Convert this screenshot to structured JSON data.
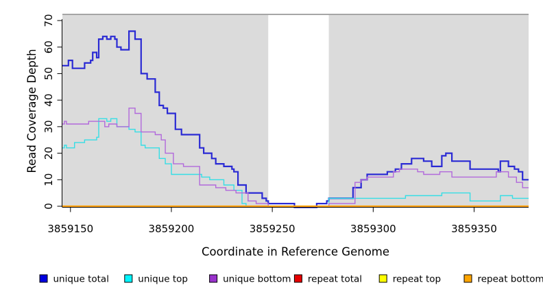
{
  "chart_data": {
    "type": "line",
    "step": true,
    "title": "",
    "xlabel": "Coordinate in Reference Genome",
    "ylabel": "Read Coverage Depth",
    "xlim": [
      3859146,
      3859377
    ],
    "ylim": [
      0,
      70
    ],
    "grid": false,
    "plot_background": "#DBDBDB",
    "top_border_color": "#9B9B9B",
    "masked_region": {
      "x_start": 3859248,
      "x_end": 3859278,
      "fill": "#FFFFFF"
    },
    "x_ticks": {
      "values": [
        3859150,
        3859200,
        3859250,
        3859300,
        3859350
      ],
      "labels": [
        "3859150",
        "3859200",
        "3859250",
        "3859300",
        "3859350"
      ]
    },
    "y_ticks": {
      "values": [
        0,
        10,
        20,
        30,
        40,
        50,
        60,
        70
      ],
      "labels": [
        "0",
        "10",
        "20",
        "30",
        "40",
        "50",
        "60",
        "70"
      ]
    },
    "series": [
      {
        "name": "unique total",
        "color": "#2A2AD4",
        "line_width": 2.2,
        "points": [
          [
            3859146,
            53
          ],
          [
            3859149,
            55
          ],
          [
            3859151,
            52
          ],
          [
            3859157,
            54
          ],
          [
            3859160,
            55
          ],
          [
            3859161,
            58
          ],
          [
            3859163,
            56
          ],
          [
            3859164,
            63
          ],
          [
            3859166,
            64
          ],
          [
            3859168,
            63
          ],
          [
            3859170,
            64
          ],
          [
            3859172,
            63
          ],
          [
            3859173,
            60
          ],
          [
            3859175,
            59
          ],
          [
            3859179,
            66
          ],
          [
            3859182,
            63
          ],
          [
            3859185,
            50
          ],
          [
            3859188,
            48
          ],
          [
            3859192,
            43
          ],
          [
            3859194,
            38
          ],
          [
            3859196,
            37
          ],
          [
            3859198,
            35
          ],
          [
            3859202,
            29
          ],
          [
            3859205,
            27
          ],
          [
            3859214,
            22
          ],
          [
            3859216,
            20
          ],
          [
            3859220,
            18
          ],
          [
            3859222,
            16
          ],
          [
            3859226,
            15
          ],
          [
            3859230,
            14
          ],
          [
            3859231,
            13
          ],
          [
            3859233,
            8
          ],
          [
            3859237,
            5
          ],
          [
            3859245,
            3
          ],
          [
            3859247,
            2
          ],
          [
            3859248,
            1
          ],
          [
            3859261,
            0
          ],
          [
            3859272,
            1
          ],
          [
            3859277,
            2
          ],
          [
            3859278,
            3
          ],
          [
            3859290,
            7
          ],
          [
            3859294,
            10
          ],
          [
            3859297,
            12
          ],
          [
            3859307,
            13
          ],
          [
            3859311,
            14
          ],
          [
            3859314,
            16
          ],
          [
            3859319,
            18
          ],
          [
            3859325,
            17
          ],
          [
            3859329,
            15
          ],
          [
            3859334,
            19
          ],
          [
            3859336,
            20
          ],
          [
            3859339,
            17
          ],
          [
            3859348,
            14
          ],
          [
            3859362,
            13
          ],
          [
            3859363,
            17
          ],
          [
            3859367,
            15
          ],
          [
            3859370,
            14
          ],
          [
            3859372,
            13
          ],
          [
            3859374,
            10
          ]
        ]
      },
      {
        "name": "unique top",
        "color": "#35DEE5",
        "line_width": 1.4,
        "points": [
          [
            3859146,
            22
          ],
          [
            3859147,
            23
          ],
          [
            3859148,
            22
          ],
          [
            3859152,
            24
          ],
          [
            3859157,
            25
          ],
          [
            3859163,
            26
          ],
          [
            3859164,
            33
          ],
          [
            3859168,
            32
          ],
          [
            3859170,
            33
          ],
          [
            3859173,
            30
          ],
          [
            3859179,
            29
          ],
          [
            3859182,
            28
          ],
          [
            3859185,
            23
          ],
          [
            3859187,
            22
          ],
          [
            3859194,
            18
          ],
          [
            3859197,
            16
          ],
          [
            3859200,
            12
          ],
          [
            3859215,
            11
          ],
          [
            3859219,
            10
          ],
          [
            3859226,
            8
          ],
          [
            3859231,
            6
          ],
          [
            3859235,
            1
          ],
          [
            3859237,
            0
          ],
          [
            3859278,
            3
          ],
          [
            3859316,
            4
          ],
          [
            3859334,
            5
          ],
          [
            3859348,
            2
          ],
          [
            3859363,
            4
          ],
          [
            3859369,
            3
          ]
        ]
      },
      {
        "name": "unique bottom",
        "color": "#B168DB",
        "line_width": 1.4,
        "points": [
          [
            3859146,
            31
          ],
          [
            3859147,
            32
          ],
          [
            3859148,
            31
          ],
          [
            3859159,
            32
          ],
          [
            3859167,
            30
          ],
          [
            3859169,
            31
          ],
          [
            3859173,
            30
          ],
          [
            3859179,
            37
          ],
          [
            3859182,
            35
          ],
          [
            3859185,
            28
          ],
          [
            3859192,
            27
          ],
          [
            3859195,
            25
          ],
          [
            3859197,
            20
          ],
          [
            3859201,
            16
          ],
          [
            3859206,
            15
          ],
          [
            3859214,
            8
          ],
          [
            3859222,
            7
          ],
          [
            3859227,
            6
          ],
          [
            3859232,
            5
          ],
          [
            3859238,
            2
          ],
          [
            3859242,
            1
          ],
          [
            3859248,
            0
          ],
          [
            3859278,
            1
          ],
          [
            3859291,
            9
          ],
          [
            3859294,
            10
          ],
          [
            3859297,
            11
          ],
          [
            3859310,
            13
          ],
          [
            3859313,
            14
          ],
          [
            3859322,
            13
          ],
          [
            3859325,
            12
          ],
          [
            3859333,
            13
          ],
          [
            3859339,
            11
          ],
          [
            3859361,
            13
          ],
          [
            3859367,
            11
          ],
          [
            3859371,
            9
          ],
          [
            3859374,
            7
          ]
        ]
      },
      {
        "name": "repeat total",
        "color": "#DD0000",
        "line_width": 1.4,
        "points": [
          [
            3859146,
            0
          ]
        ]
      },
      {
        "name": "repeat top",
        "color": "#FFFF00",
        "line_width": 1.4,
        "points": [
          [
            3859146,
            0
          ]
        ]
      },
      {
        "name": "repeat bottom",
        "color": "#FFA200",
        "line_width": 2.2,
        "points": [
          [
            3859146,
            0
          ]
        ]
      }
    ],
    "legend": {
      "position": "bottom",
      "entries": [
        {
          "label": "unique total",
          "fill": "#0000E0"
        },
        {
          "label": "unique top",
          "fill": "#00F5FF"
        },
        {
          "label": "unique bottom",
          "fill": "#9932CC"
        },
        {
          "label": "repeat total",
          "fill": "#E60000"
        },
        {
          "label": "repeat top",
          "fill": "#FFFF00"
        },
        {
          "label": "repeat bottom",
          "fill": "#FFA500"
        }
      ]
    }
  }
}
